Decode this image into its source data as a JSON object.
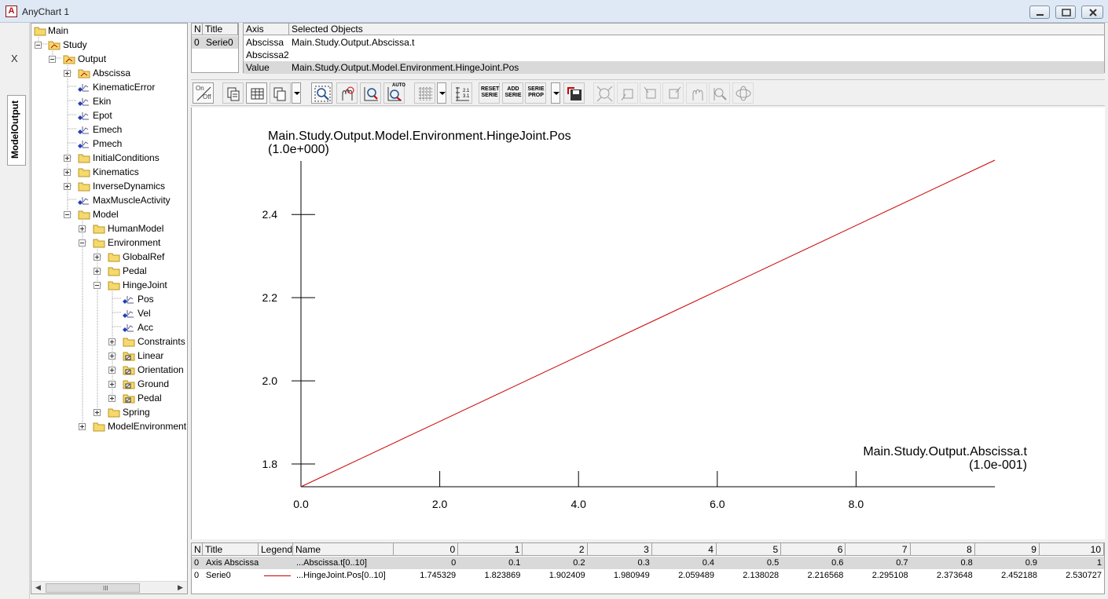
{
  "window": {
    "title": "AnyChart 1",
    "app_icon_letter": "A",
    "minimize_icon": "minimize-icon",
    "maximize_icon": "maximize-icon",
    "close_icon": "close-icon"
  },
  "side_panel": {
    "close_label": "X",
    "tab_label": "ModelOutput"
  },
  "tree": {
    "main": "Main",
    "study": "Study",
    "output": "Output",
    "abscissa": "Abscissa",
    "kinematic_error": "KinematicError",
    "ekin": "Ekin",
    "epot": "Epot",
    "emech": "Emech",
    "pmech": "Pmech",
    "initial_conditions": "InitialConditions",
    "kinematics": "Kinematics",
    "inverse_dynamics": "InverseDynamics",
    "max_muscle_activity": "MaxMuscleActivity",
    "model": "Model",
    "human_model": "HumanModel",
    "environment": "Environment",
    "global_ref": "GlobalRef",
    "pedal": "Pedal",
    "hinge_joint": "HingeJoint",
    "pos": "Pos",
    "vel": "Vel",
    "acc": "Acc",
    "constraints": "Constraints",
    "linear": "Linear",
    "orientation": "Orientation",
    "ground": "Ground",
    "pedal2": "Pedal",
    "spring": "Spring",
    "model_environment": "ModelEnvironment",
    "scroll_grip": "III"
  },
  "serie_table": {
    "headers": {
      "n": "N",
      "title": "Title"
    },
    "rows": [
      {
        "n": "0",
        "title": "Serie0"
      }
    ]
  },
  "axis_table": {
    "headers": {
      "axis": "Axis",
      "selected": "Selected Objects"
    },
    "rows": [
      {
        "axis": "Abscissa",
        "selected": "Main.Study.Output.Abscissa.t"
      },
      {
        "axis": "Abscissa2",
        "selected": ""
      },
      {
        "axis": "Value",
        "selected": "Main.Study.Output.Model.Environment.HingeJoint.Pos"
      }
    ]
  },
  "toolbar": {
    "on_off": [
      "On",
      "Off"
    ],
    "reset_serie": [
      "RESET",
      "SERIE"
    ],
    "add_serie": [
      "ADD",
      "SERIE"
    ],
    "serie_prop": [
      "SERIE",
      "PROP"
    ],
    "auto": "AUTO"
  },
  "chart_data": {
    "type": "line",
    "ylabel": "Main.Study.Output.Model.Environment.HingeJoint.Pos",
    "yscale": "(1.0e+000)",
    "xlabel": "Main.Study.Output.Abscissa.t",
    "xscale": "(1.0e-001)",
    "x_ticks": [
      "0.0",
      "2.0",
      "4.0",
      "6.0",
      "8.0"
    ],
    "y_ticks": [
      "1.8",
      "2.0",
      "2.2",
      "2.4"
    ],
    "xlim": [
      0,
      10
    ],
    "ylim": [
      1.745329,
      2.530727
    ],
    "series": [
      {
        "name": "Serie0",
        "color": "#cc0000",
        "x": [
          0,
          1,
          2,
          3,
          4,
          5,
          6,
          7,
          8,
          9,
          10
        ],
        "y": [
          1.745329,
          1.823869,
          1.902409,
          1.980949,
          2.059489,
          2.138028,
          2.216568,
          2.295108,
          2.373648,
          2.452188,
          2.530727
        ]
      }
    ]
  },
  "data_grid": {
    "headers": {
      "n": "N",
      "title": "Title",
      "legend": "Legend",
      "name": "Name",
      "cols": [
        "0",
        "1",
        "2",
        "3",
        "4",
        "5",
        "6",
        "7",
        "8",
        "9",
        "10"
      ]
    },
    "rows": [
      {
        "n": "0",
        "title": "Axis Abscissa",
        "name": "...Abscissa.t[0..10]",
        "values": [
          "0",
          "0.1",
          "0.2",
          "0.3",
          "0.4",
          "0.5",
          "0.6",
          "0.7",
          "0.8",
          "0.9",
          "1"
        ]
      },
      {
        "n": "0",
        "title": "Serie0",
        "name": "...HingeJoint.Pos[0..10]",
        "values": [
          "1.745329",
          "1.823869",
          "1.902409",
          "1.980949",
          "2.059489",
          "2.138028",
          "2.216568",
          "2.295108",
          "2.373648",
          "2.452188",
          "2.530727"
        ]
      }
    ]
  }
}
